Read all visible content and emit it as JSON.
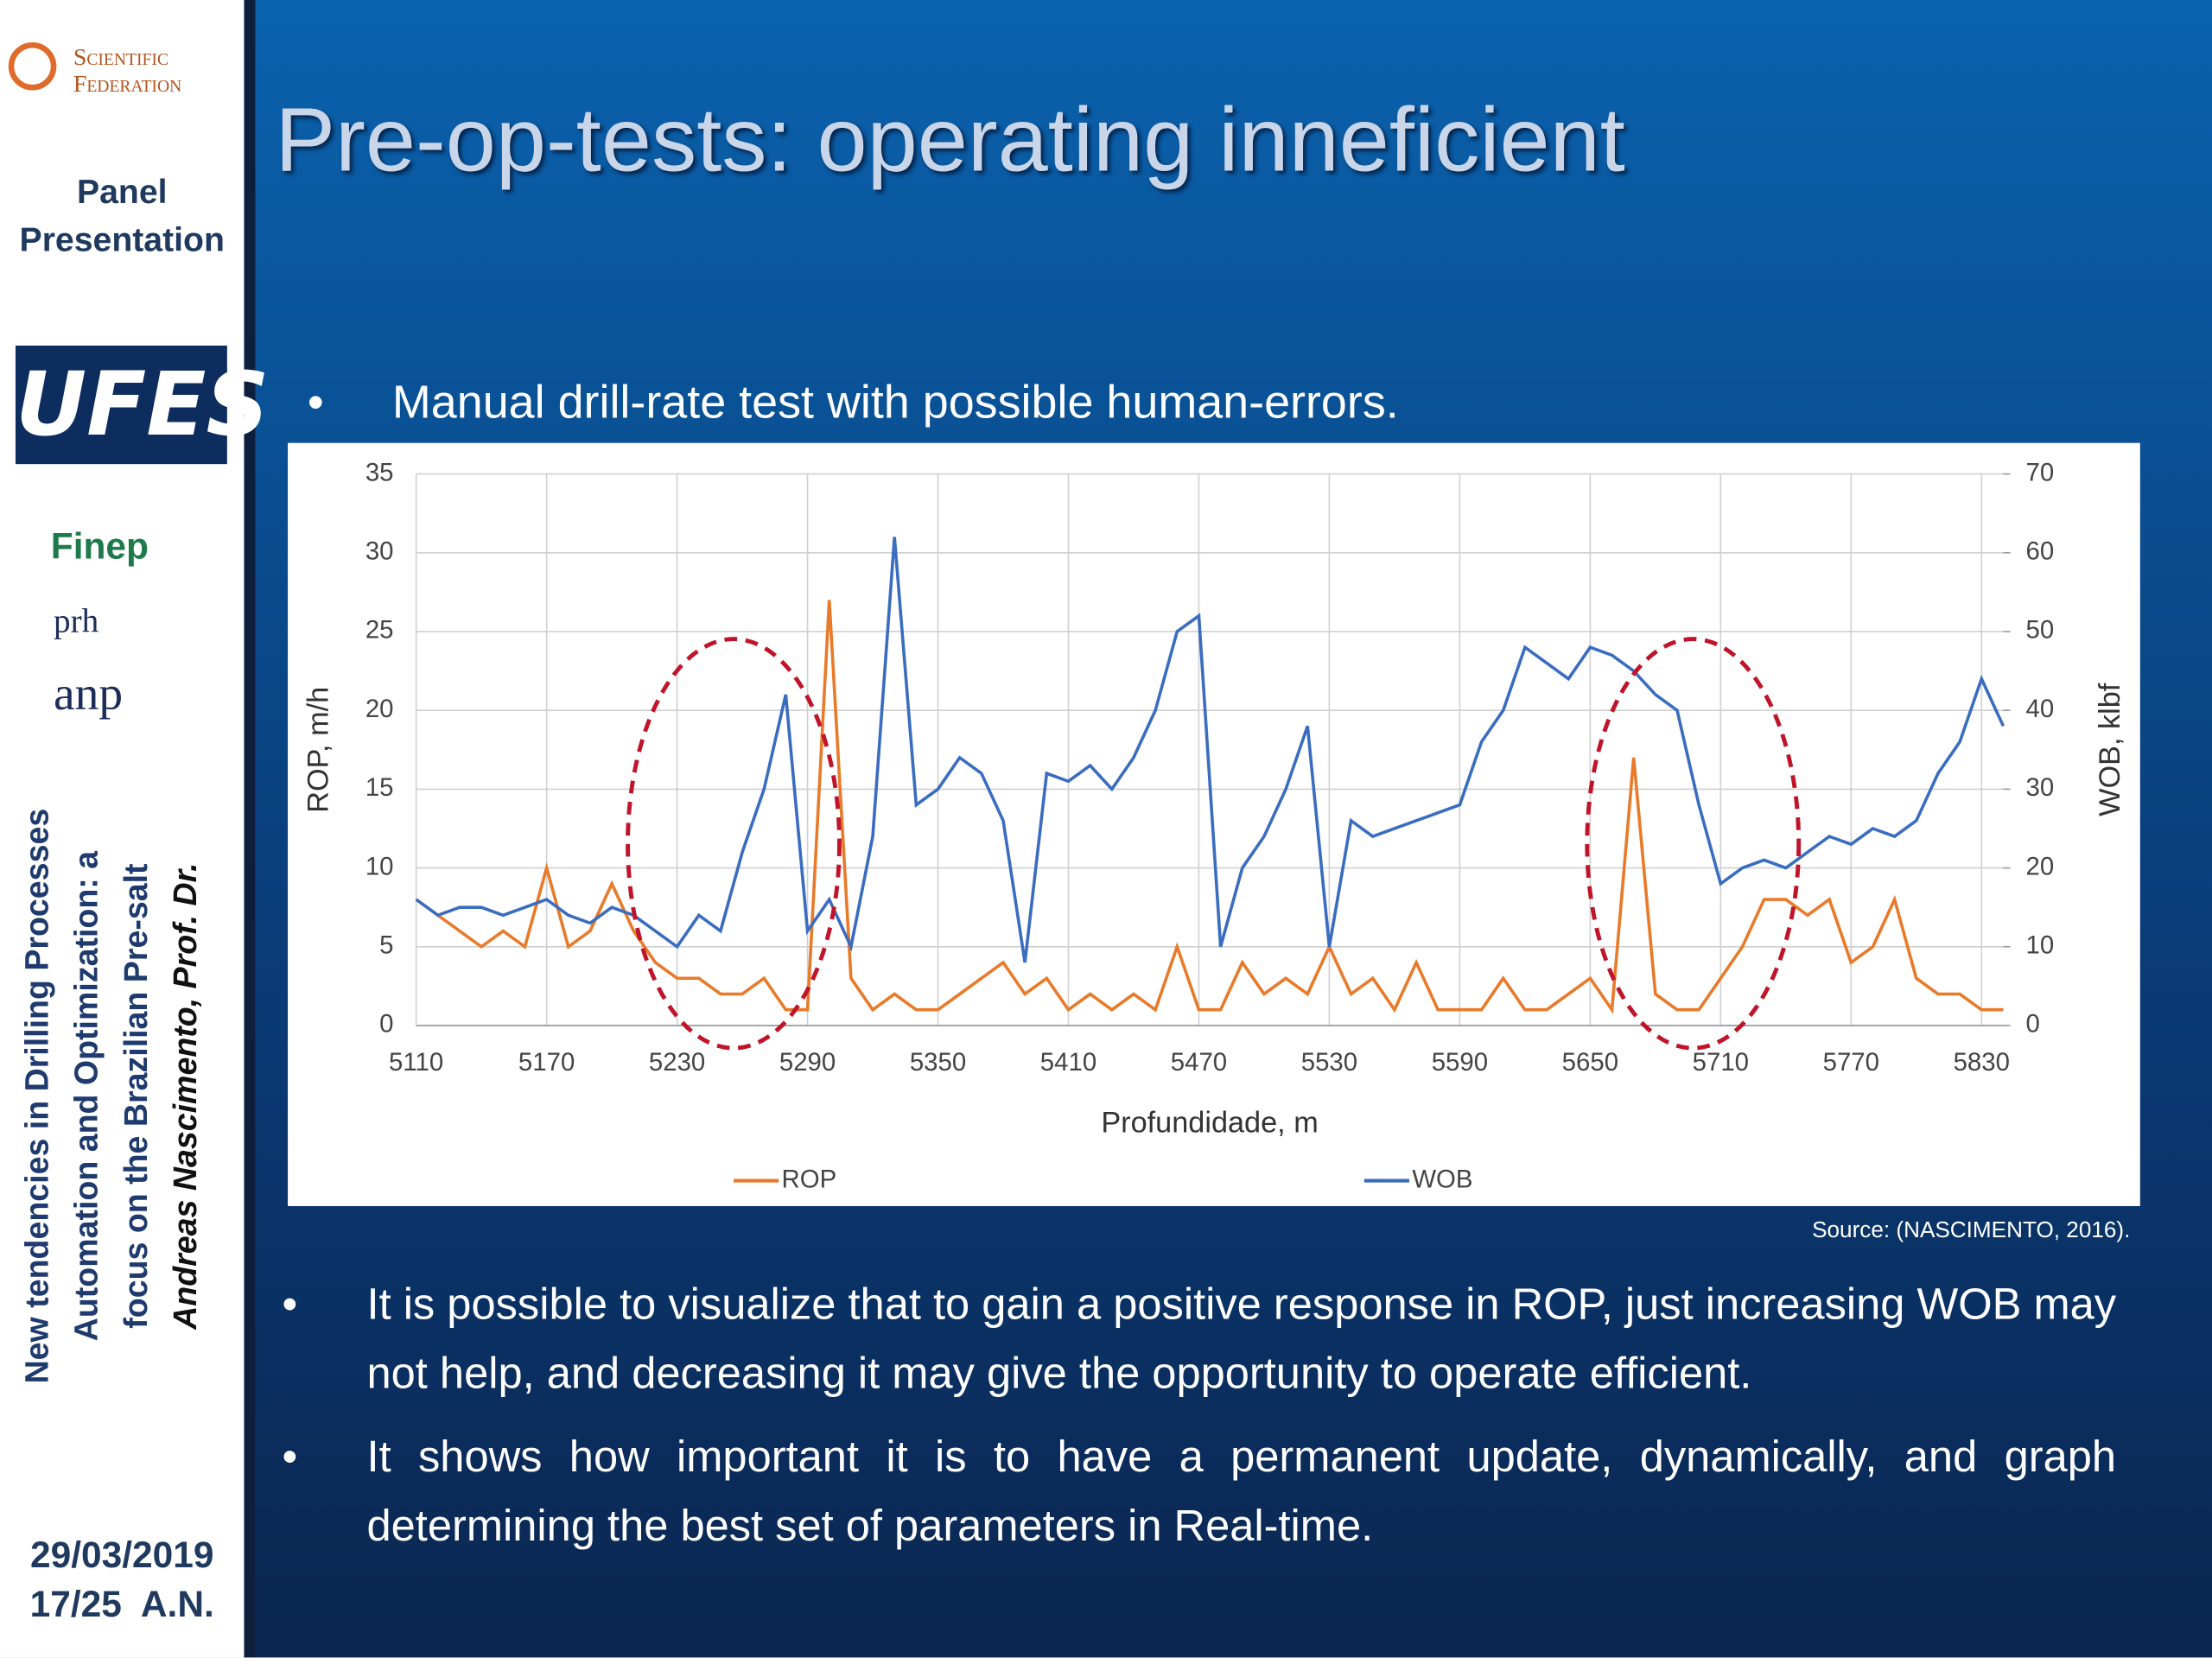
{
  "sidebar": {
    "brand": [
      "Scientific",
      "Federation"
    ],
    "panel": [
      "Panel",
      "Presentation"
    ],
    "logos": [
      "UFES",
      "Finep",
      "prh",
      "anp"
    ],
    "vertical": [
      "New tendencies in Drilling Processes",
      "Automation and Optimization: a",
      "focus on the Brazilian Pre-salt",
      "Andreas Nascimento, Prof. Dr."
    ],
    "date": "29/03/2019",
    "page": "17/25  A.N."
  },
  "title": "Pre-op-tests: operating inneficient",
  "bullet_top": "Manual drill-rate test with possible human-errors.",
  "source": "Source: (NASCIMENTO, 2016).",
  "bullets": [
    "It is possible to visualize that to gain a positive response in ROP, just increasing WOB may not help, and decreasing it may give the opportunity to operate efficient.",
    "It shows how important it is to have a permanent update, dynamically, and graph determining the best set of parameters in Real-time."
  ],
  "chart_data": {
    "type": "line",
    "x_label": "Profundidade, m",
    "y_label": "ROP, m/h",
    "y2_label": "WOB, klbf",
    "x": [
      5110,
      5120,
      5130,
      5140,
      5150,
      5160,
      5170,
      5180,
      5190,
      5200,
      5210,
      5220,
      5230,
      5240,
      5250,
      5260,
      5270,
      5280,
      5290,
      5300,
      5310,
      5320,
      5330,
      5340,
      5350,
      5360,
      5370,
      5380,
      5390,
      5400,
      5410,
      5420,
      5430,
      5440,
      5450,
      5460,
      5470,
      5480,
      5490,
      5500,
      5510,
      5520,
      5530,
      5540,
      5550,
      5560,
      5570,
      5580,
      5590,
      5600,
      5610,
      5620,
      5630,
      5640,
      5650,
      5660,
      5670,
      5680,
      5690,
      5700,
      5710,
      5720,
      5730,
      5740,
      5750,
      5760,
      5770,
      5780,
      5790,
      5800,
      5810,
      5820,
      5830,
      5840
    ],
    "series": [
      {
        "name": "ROP",
        "color": "#e87a2a",
        "values": [
          8,
          7,
          6,
          5,
          6,
          5,
          10,
          5,
          6,
          9,
          6,
          4,
          3,
          3,
          2,
          2,
          3,
          1,
          1,
          27,
          3,
          1,
          2,
          1,
          1,
          2,
          3,
          4,
          2,
          3,
          1,
          2,
          1,
          2,
          1,
          5,
          1,
          1,
          4,
          2,
          3,
          2,
          5,
          2,
          3,
          1,
          4,
          1,
          1,
          1,
          3,
          1,
          1,
          2,
          3,
          1,
          17,
          2,
          1,
          1,
          3,
          5,
          8,
          8,
          7,
          8,
          4,
          5,
          8,
          3,
          2,
          2,
          1,
          1
        ]
      },
      {
        "name": "WOB",
        "color": "#3a6cc0",
        "axis": "y2",
        "values": [
          16,
          14,
          15,
          15,
          14,
          15,
          16,
          14,
          13,
          15,
          14,
          12,
          10,
          14,
          12,
          22,
          30,
          42,
          12,
          16,
          10,
          24,
          62,
          28,
          30,
          34,
          32,
          26,
          8,
          32,
          31,
          33,
          30,
          34,
          40,
          50,
          52,
          10,
          20,
          24,
          30,
          38,
          10,
          26,
          24,
          25,
          26,
          27,
          28,
          36,
          40,
          48,
          46,
          44,
          48,
          47,
          45,
          42,
          40,
          28,
          18,
          20,
          21,
          20,
          22,
          24,
          23,
          25,
          24,
          26,
          32,
          36,
          44,
          38
        ]
      }
    ],
    "xlim": [
      5110,
      5840
    ],
    "xticks": [
      5110,
      5170,
      5230,
      5290,
      5350,
      5410,
      5470,
      5530,
      5590,
      5650,
      5710,
      5770,
      5830
    ],
    "ylim": [
      0,
      35
    ],
    "yticks": [
      0,
      5,
      10,
      15,
      20,
      25,
      30,
      35
    ],
    "y2lim": [
      0,
      70
    ],
    "y2ticks": [
      0,
      10,
      20,
      30,
      40,
      50,
      60,
      70
    ],
    "grid": true,
    "legend": "bottom"
  }
}
